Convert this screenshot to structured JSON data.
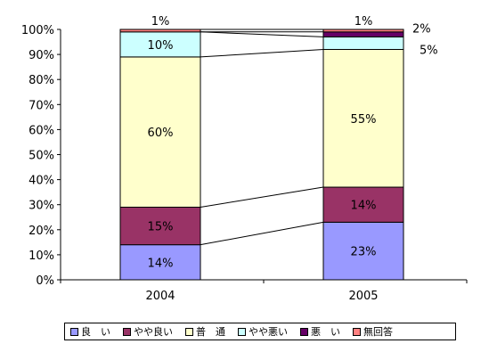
{
  "chart_data": {
    "type": "bar",
    "stacked": true,
    "percent": true,
    "categories": [
      "2004",
      "2005"
    ],
    "y_ticks": [
      "0%",
      "10%",
      "20%",
      "30%",
      "40%",
      "50%",
      "60%",
      "70%",
      "80%",
      "90%",
      "100%"
    ],
    "ylim": [
      0,
      100
    ],
    "series": [
      {
        "name": "良　い",
        "color": "#9999ff",
        "values": [
          14,
          23
        ],
        "labels": [
          "14%",
          "23%"
        ]
      },
      {
        "name": "やや良い",
        "color": "#993366",
        "values": [
          15,
          14
        ],
        "labels": [
          "15%",
          "14%"
        ]
      },
      {
        "name": "普　通",
        "color": "#ffffcc",
        "values": [
          60,
          55
        ],
        "labels": [
          "60%",
          "55%"
        ]
      },
      {
        "name": "やや悪い",
        "color": "#ccffff",
        "values": [
          10,
          5
        ],
        "labels": [
          "10%",
          "5%"
        ]
      },
      {
        "name": "悪　い",
        "color": "#660066",
        "values": [
          0,
          2
        ],
        "labels": [
          "",
          "2%"
        ]
      },
      {
        "name": "無回答",
        "color": "#ff8080",
        "values": [
          1,
          1
        ],
        "labels": [
          "1%",
          "1%"
        ]
      }
    ],
    "legend_position": "bottom",
    "grid": false
  }
}
